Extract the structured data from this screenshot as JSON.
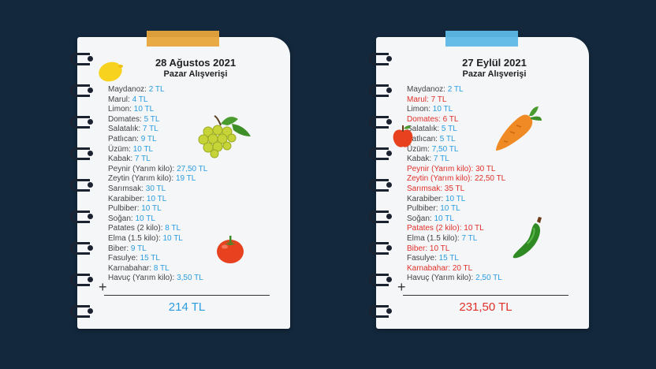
{
  "colors": {
    "background": "#13283d",
    "note": "#f5f6f7",
    "price_blue": "#2b9ce0",
    "price_red": "#e0302a",
    "tape_left": "#e6a53b",
    "tape_right": "#5cb8e6"
  },
  "left_note": {
    "date": "28 Ağustos 2021",
    "subtitle": "Pazar Alışverişi",
    "items": [
      {
        "name": "Maydanoz:",
        "price": "2 TL"
      },
      {
        "name": "Marul:",
        "price": "4 TL"
      },
      {
        "name": "Limon:",
        "price": "10 TL"
      },
      {
        "name": "Domates:",
        "price": "5 TL"
      },
      {
        "name": "Salatalık:",
        "price": "7 TL"
      },
      {
        "name": "Patlıcan:",
        "price": "9 TL"
      },
      {
        "name": "Üzüm:",
        "price": "10 TL"
      },
      {
        "name": "Kabak:",
        "price": "7 TL"
      },
      {
        "name": "Peynir (Yarım kilo):",
        "price": "27,50 TL"
      },
      {
        "name": "Zeytin (Yarım kilo):",
        "price": "19 TL"
      },
      {
        "name": "Sarımsak:",
        "price": "30 TL"
      },
      {
        "name": "Karabiber:",
        "price": "10 TL"
      },
      {
        "name": "Pulbiber:",
        "price": "10 TL"
      },
      {
        "name": "Soğan:",
        "price": "10 TL"
      },
      {
        "name": "Patates (2 kilo):",
        "price": "8 TL"
      },
      {
        "name": "Elma (1.5 kilo):",
        "price": "10 TL"
      },
      {
        "name": "Biber:",
        "price": "9 TL"
      },
      {
        "name": "Fasulye:",
        "price": "15 TL"
      },
      {
        "name": "Karnabahar:",
        "price": "8 TL"
      },
      {
        "name": "Havuç (Yarım kilo):",
        "price": "3,50 TL"
      }
    ],
    "plus": "+",
    "total": "214 TL",
    "illustrations": [
      "lemon-icon",
      "grapes-icon",
      "tomato-icon"
    ]
  },
  "right_note": {
    "date": "27 Eylül 2021",
    "subtitle": "Pazar Alışverişi",
    "items": [
      {
        "name": "Maydanoz:",
        "price": "2 TL",
        "changed": false
      },
      {
        "name": "Marul:",
        "price": "7 TL",
        "changed": true
      },
      {
        "name": "Limon:",
        "price": "10 TL",
        "changed": false
      },
      {
        "name": "Domates:",
        "price": "6 TL",
        "changed": true
      },
      {
        "name": "Salatalık:",
        "price": "5 TL",
        "changed": false
      },
      {
        "name": "Patlıcan:",
        "price": "5 TL",
        "changed": false
      },
      {
        "name": "Üzüm:",
        "price": "7,50 TL",
        "changed": false
      },
      {
        "name": "Kabak:",
        "price": "7 TL",
        "changed": false
      },
      {
        "name": "Peynir (Yarım kilo):",
        "price": "30 TL",
        "changed": true
      },
      {
        "name": "Zeytin (Yarım kilo):",
        "price": "22,50 TL",
        "changed": true
      },
      {
        "name": "Sarımsak:",
        "price": "35 TL",
        "changed": true
      },
      {
        "name": "Karabiber:",
        "price": "10 TL",
        "changed": false
      },
      {
        "name": "Pulbiber:",
        "price": "10 TL",
        "changed": false
      },
      {
        "name": "Soğan:",
        "price": "10 TL",
        "changed": false
      },
      {
        "name": "Patates (2 kilo):",
        "price": "10 TL",
        "changed": true
      },
      {
        "name": "Elma (1.5 kilo):",
        "price": "7 TL",
        "changed": false
      },
      {
        "name": "Biber:",
        "price": "10 TL",
        "changed": true
      },
      {
        "name": "Fasulye:",
        "price": "15 TL",
        "changed": false
      },
      {
        "name": "Karnabahar:",
        "price": "20 TL",
        "changed": true
      },
      {
        "name": "Havuç (Yarım kilo):",
        "price": "2,50 TL",
        "changed": false
      }
    ],
    "plus": "+",
    "total": "231,50 TL",
    "illustrations": [
      "apple-icon",
      "carrot-icon",
      "green-pepper-icon"
    ]
  }
}
